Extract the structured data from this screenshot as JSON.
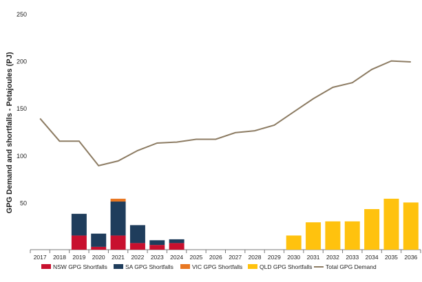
{
  "chart_data": {
    "type": "bar",
    "ylabel": "GPG Demand and shortfalls - Petajoules (PJ)",
    "ylim": [
      0,
      250
    ],
    "yticks": [
      50,
      100,
      150,
      200,
      250
    ],
    "grid": false,
    "legend_position": "bottom",
    "categories": [
      "2017",
      "2018",
      "2019",
      "2020",
      "2021",
      "2022",
      "2023",
      "2024",
      "2025",
      "2026",
      "2027",
      "2028",
      "2029",
      "2030",
      "2031",
      "2032",
      "2033",
      "2034",
      "2035",
      "2036"
    ],
    "stacked_series": [
      {
        "name": "NSW GPG Shortfalls",
        "color": "#c8102e",
        "values": [
          0,
          0,
          15,
          3,
          15,
          7,
          5,
          7,
          0,
          0,
          0,
          0,
          0,
          0,
          0,
          0,
          0,
          0,
          0,
          0
        ]
      },
      {
        "name": "SA GPG Shortfalls",
        "color": "#1f3d5c",
        "values": [
          0,
          0,
          23,
          14,
          36,
          19,
          5,
          4,
          0,
          0,
          0,
          0,
          0,
          0,
          0,
          0,
          0,
          0,
          0,
          0
        ]
      },
      {
        "name": "VIC GPG Shortfalls",
        "color": "#e87722",
        "values": [
          0,
          0,
          0,
          0,
          3,
          0,
          0,
          0,
          0,
          0,
          0,
          0,
          0,
          0,
          0,
          0,
          0,
          0,
          0,
          0
        ]
      },
      {
        "name": "QLD GPG Shortfalls",
        "color": "#ffc20e",
        "values": [
          0,
          0,
          0,
          0,
          0,
          0,
          0,
          0,
          0,
          0,
          0,
          0,
          0,
          15,
          29,
          30,
          30,
          43,
          54,
          50
        ]
      }
    ],
    "line_series": [
      {
        "name": "Total GPG Demand",
        "color": "#8c7b62",
        "values": [
          139,
          115,
          115,
          89,
          94,
          105,
          113,
          114,
          117,
          117,
          124,
          126,
          132,
          146,
          160,
          172,
          177,
          191,
          200,
          199
        ]
      }
    ]
  }
}
